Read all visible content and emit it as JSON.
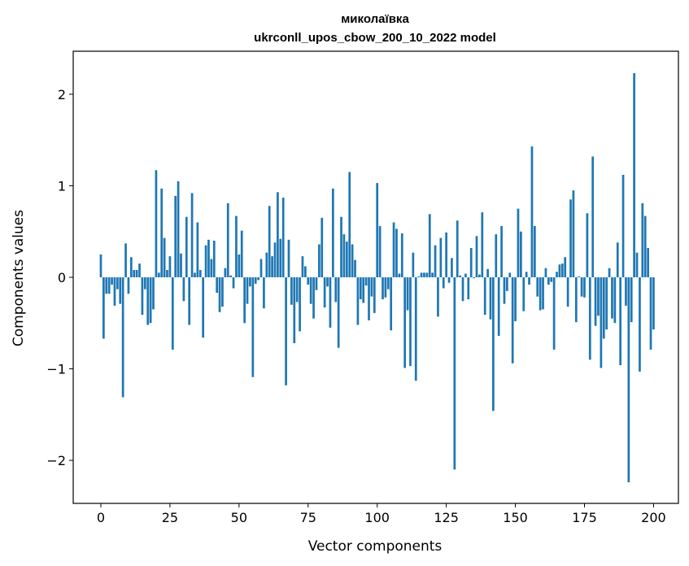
{
  "chart_data": {
    "type": "bar",
    "title": "миколаївка",
    "subtitle": "ukrconll_upos_cbow_200_10_2022 model",
    "xlabel": "Vector components",
    "ylabel": "Components values",
    "xlim": [
      -10,
      209
    ],
    "ylim": [
      -2.47,
      2.47
    ],
    "xticks": [
      0,
      25,
      50,
      75,
      100,
      125,
      150,
      175,
      200
    ],
    "yticks": [
      -2,
      -1,
      0,
      1,
      2
    ],
    "xtick_labels": [
      "0",
      "25",
      "50",
      "75",
      "100",
      "125",
      "150",
      "175",
      "200"
    ],
    "ytick_labels": [
      "−2",
      "−1",
      "0",
      "1",
      "2"
    ],
    "bar_color": "#1f77b4",
    "grid": false,
    "values": [
      0.25,
      -0.67,
      -0.18,
      -0.18,
      -0.08,
      -0.31,
      -0.13,
      -0.29,
      -1.31,
      0.37,
      -0.18,
      0.22,
      0.08,
      0.08,
      0.15,
      -0.41,
      -0.13,
      -0.52,
      -0.5,
      -0.35,
      1.17,
      0.05,
      0.97,
      0.43,
      0.08,
      0.23,
      -0.79,
      0.89,
      1.05,
      0.26,
      -0.26,
      0.66,
      -0.52,
      0.92,
      0.05,
      0.6,
      0.08,
      -0.66,
      0.35,
      0.41,
      0.2,
      0.4,
      -0.17,
      -0.38,
      -0.32,
      0.1,
      0.81,
      0.02,
      -0.12,
      0.67,
      0.25,
      0.51,
      -0.5,
      -0.29,
      -0.1,
      -1.09,
      -0.07,
      -0.03,
      0.2,
      -0.34,
      0.27,
      0.78,
      0.23,
      0.38,
      0.93,
      0.42,
      0.87,
      -1.18,
      0.41,
      -0.3,
      -0.72,
      -0.27,
      -0.59,
      0.23,
      0.12,
      -0.08,
      -0.29,
      -0.45,
      -0.14,
      0.36,
      0.65,
      -0.33,
      -0.1,
      -0.55,
      0.97,
      -0.27,
      -0.77,
      0.66,
      0.47,
      0.39,
      1.15,
      0.36,
      0.19,
      -0.52,
      -0.24,
      -0.28,
      -0.09,
      -0.47,
      -0.21,
      -0.39,
      1.03,
      0.56,
      -0.24,
      -0.22,
      -0.13,
      -0.58,
      0.6,
      0.53,
      0.04,
      0.48,
      -0.99,
      -0.36,
      -0.97,
      0.27,
      -1.13,
      0.01,
      0.05,
      0.05,
      0.05,
      0.69,
      0.05,
      0.35,
      -0.43,
      0.43,
      -0.12,
      0.49,
      -0.06,
      0.21,
      -2.1,
      0.62,
      0.02,
      -0.26,
      0.04,
      -0.24,
      0.32,
      -0.01,
      0.45,
      0.03,
      0.71,
      -0.41,
      0.09,
      -0.46,
      -1.46,
      0.47,
      -0.64,
      0.56,
      -0.29,
      -0.15,
      0.05,
      -0.94,
      -0.48,
      0.75,
      0.5,
      -0.37,
      0.06,
      -0.08,
      1.43,
      0.56,
      -0.21,
      -0.36,
      -0.35,
      0.1,
      -0.08,
      -0.05,
      -0.79,
      0.06,
      0.14,
      0.15,
      0.22,
      -0.32,
      0.85,
      0.95,
      -0.49,
      0.01,
      -0.21,
      -0.22,
      0.7,
      -0.9,
      1.32,
      -0.53,
      -0.42,
      -0.99,
      -0.67,
      -0.57,
      0.1,
      -0.45,
      -0.5,
      0.38,
      -0.96,
      1.12,
      -0.31,
      -2.24,
      -0.49,
      2.23,
      0.27,
      -1.03,
      0.81,
      0.67,
      0.32,
      -0.79,
      -0.57
    ]
  }
}
